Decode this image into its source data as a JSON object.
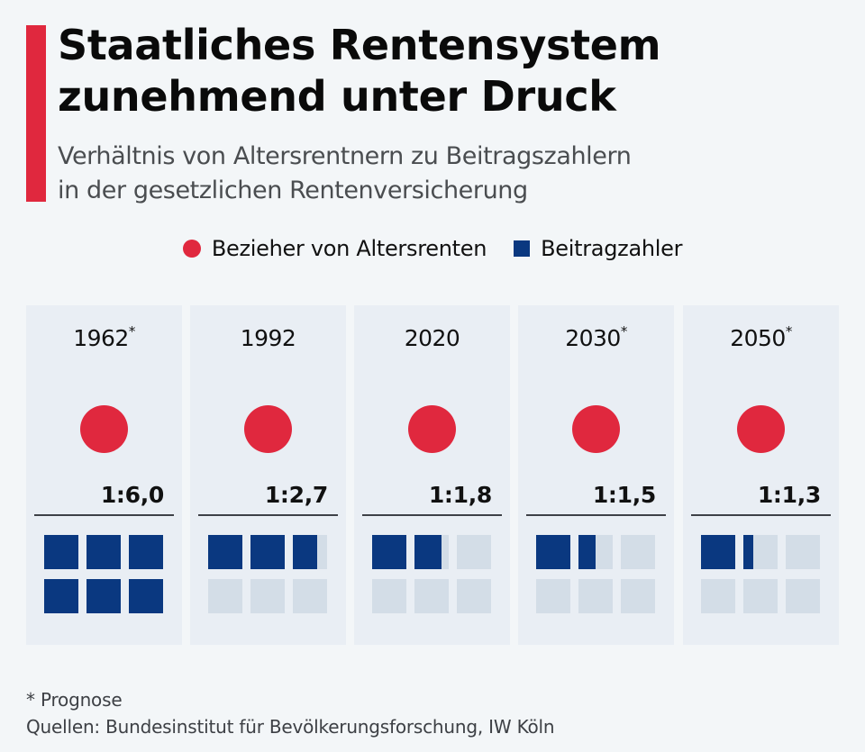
{
  "header": {
    "title_lines": [
      "Staatliches Rentensystem",
      "zunehmend unter Druck"
    ],
    "subtitle_lines": [
      "Verhältnis von Altersrentnern zu Beitragszahlern",
      "in der gesetzlichen Rentenversicherung"
    ]
  },
  "legend": {
    "items": [
      {
        "label": "Bezieher von Altersrenten",
        "shape": "circle",
        "color": "#e0283e"
      },
      {
        "label": "Beitragzahler",
        "shape": "square",
        "color": "#0a3880"
      }
    ]
  },
  "colors": {
    "accent": "#e0283e",
    "pensioner": "#e0283e",
    "contributor": "#0a3880",
    "empty_cell": "#d3dde7",
    "panel_bg": "#e9eef4",
    "page_bg": "#f3f6f8"
  },
  "chart_data": {
    "type": "pictogram",
    "title": "Staatliches Rentensystem zunehmend unter Druck",
    "subtitle": "Verhältnis von Altersrentnern zu Beitragszahlern in der gesetzlichen Rentenversicherung",
    "unit_max": 6,
    "categories": [
      "1962",
      "1992",
      "2020",
      "2030",
      "2050"
    ],
    "panels": [
      {
        "year": "1962",
        "forecast": true,
        "marker": "*",
        "pensioners": 1,
        "contributors": 6.0,
        "ratio_label": "1:6,0"
      },
      {
        "year": "1992",
        "forecast": false,
        "marker": "",
        "pensioners": 1,
        "contributors": 2.7,
        "ratio_label": "1:2,7"
      },
      {
        "year": "2020",
        "forecast": false,
        "marker": "",
        "pensioners": 1,
        "contributors": 1.8,
        "ratio_label": "1:1,8"
      },
      {
        "year": "2030",
        "forecast": true,
        "marker": "*",
        "pensioners": 1,
        "contributors": 1.5,
        "ratio_label": "1:1,5"
      },
      {
        "year": "2050",
        "forecast": true,
        "marker": "*",
        "pensioners": 1,
        "contributors": 1.3,
        "ratio_label": "1:1,3"
      }
    ],
    "series": [
      {
        "name": "Bezieher von Altersrenten",
        "values": [
          1,
          1,
          1,
          1,
          1
        ]
      },
      {
        "name": "Beitragzahler",
        "values": [
          6.0,
          2.7,
          1.8,
          1.5,
          1.3
        ]
      }
    ]
  },
  "footer": {
    "note": "* Prognose",
    "source": "Quellen: Bundesinstitut für Bevölkerungsforschung, IW Köln"
  }
}
